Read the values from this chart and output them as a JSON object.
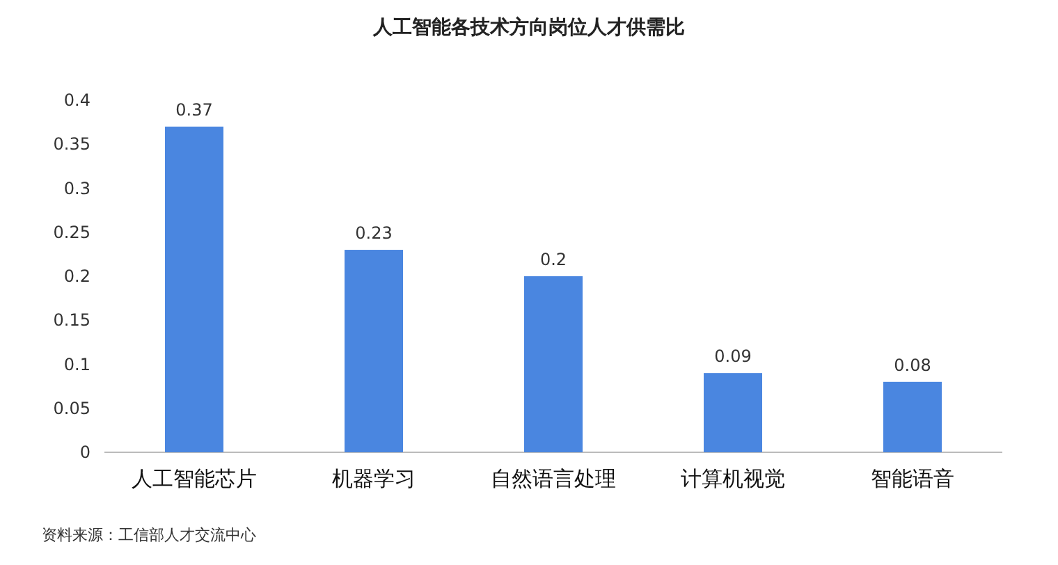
{
  "chart_data": {
    "type": "bar",
    "title": "人工智能各技术方向岗位人才供需比",
    "categories": [
      "人工智能芯片",
      "机器学习",
      "自然语言处理",
      "计算机视觉",
      "智能语音"
    ],
    "values": [
      0.37,
      0.23,
      0.2,
      0.09,
      0.08
    ],
    "color": "#4a86e0",
    "ylim": [
      0,
      0.4
    ],
    "yticks": [
      0,
      0.05,
      0.1,
      0.15,
      0.2,
      0.25,
      0.3,
      0.35,
      0.4
    ],
    "data_labels": true,
    "grid": false,
    "annotations": [
      "资料来源：工信部人才交流中心"
    ]
  }
}
